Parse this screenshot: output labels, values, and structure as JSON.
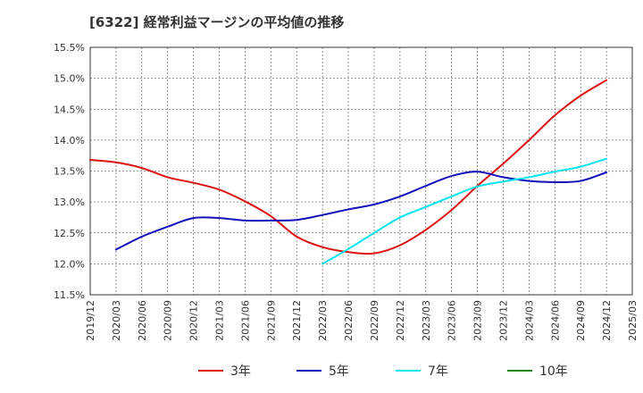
{
  "chart_data": {
    "type": "line",
    "title": "[6322]  経常利益マージンの平均値の推移",
    "xlabel": "",
    "ylabel": "",
    "x_ticks": [
      "2019/12",
      "2020/03",
      "2020/06",
      "2020/09",
      "2020/12",
      "2021/03",
      "2021/06",
      "2021/09",
      "2021/12",
      "2022/03",
      "2022/06",
      "2022/09",
      "2022/12",
      "2023/03",
      "2023/06",
      "2023/09",
      "2023/12",
      "2024/03",
      "2024/06",
      "2024/09",
      "2024/12",
      "2025/03"
    ],
    "y_ticks": [
      "11.5%",
      "12.0%",
      "12.5%",
      "13.0%",
      "13.5%",
      "14.0%",
      "14.5%",
      "15.0%",
      "15.5%"
    ],
    "ylim": [
      11.5,
      15.5
    ],
    "grid": true,
    "legend_position": "bottom",
    "series": [
      {
        "name": "3年",
        "color": "#dd1111",
        "x": [
          "2019/12",
          "2020/03",
          "2020/06",
          "2020/09",
          "2020/12",
          "2021/03",
          "2021/06",
          "2021/09",
          "2021/12",
          "2022/03",
          "2022/06",
          "2022/09",
          "2022/12",
          "2023/03",
          "2023/06",
          "2023/09",
          "2023/12",
          "2024/03",
          "2024/06",
          "2024/09",
          "2024/12"
        ],
        "values": [
          13.68,
          13.64,
          13.55,
          13.4,
          13.31,
          13.2,
          13.01,
          12.77,
          12.44,
          12.27,
          12.19,
          12.17,
          12.3,
          12.55,
          12.87,
          13.26,
          13.62,
          14.0,
          14.4,
          14.72,
          14.97
        ]
      },
      {
        "name": "5年",
        "color": "#1111bb",
        "x": [
          "2020/03",
          "2020/06",
          "2020/09",
          "2020/12",
          "2021/03",
          "2021/06",
          "2021/09",
          "2021/12",
          "2022/03",
          "2022/06",
          "2022/09",
          "2022/12",
          "2023/03",
          "2023/06",
          "2023/09",
          "2023/12",
          "2024/03",
          "2024/06",
          "2024/09",
          "2024/12"
        ],
        "values": [
          12.23,
          12.44,
          12.6,
          12.74,
          12.74,
          12.7,
          12.7,
          12.71,
          12.79,
          12.88,
          12.96,
          13.09,
          13.26,
          13.42,
          13.49,
          13.4,
          13.34,
          13.32,
          13.34,
          13.48
        ]
      },
      {
        "name": "7年",
        "color": "#00e5ee",
        "x": [
          "2022/03",
          "2022/06",
          "2022/09",
          "2022/12",
          "2023/03",
          "2023/06",
          "2023/09",
          "2023/12",
          "2024/03",
          "2024/06",
          "2024/09",
          "2024/12"
        ],
        "values": [
          12.0,
          12.24,
          12.5,
          12.75,
          12.92,
          13.09,
          13.25,
          13.33,
          13.4,
          13.49,
          13.57,
          13.7
        ]
      },
      {
        "name": "10年",
        "color": "#228822",
        "x": [],
        "values": []
      }
    ]
  }
}
